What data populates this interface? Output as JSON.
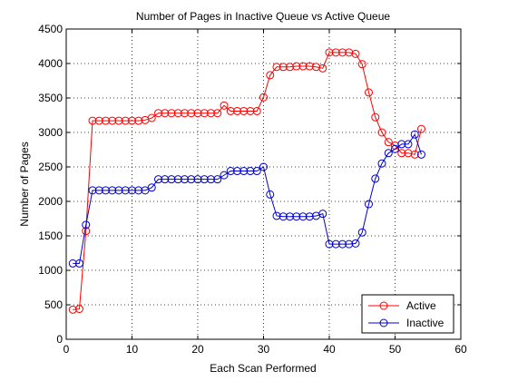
{
  "chart_data": {
    "type": "line",
    "title": "Number of Pages in Inactive Queue vs Active Queue",
    "xlabel": "Each Scan Performed",
    "ylabel": "Number of Pages",
    "xlim": [
      0,
      60
    ],
    "ylim": [
      0,
      4500
    ],
    "xticks": [
      0,
      10,
      20,
      30,
      40,
      50,
      60
    ],
    "yticks": [
      0,
      500,
      1000,
      1500,
      2000,
      2500,
      3000,
      3500,
      4000,
      4500
    ],
    "grid": true,
    "legend_position": "bottom-right",
    "x": [
      1,
      2,
      3,
      4,
      5,
      6,
      7,
      8,
      9,
      10,
      11,
      12,
      13,
      14,
      15,
      16,
      17,
      18,
      19,
      20,
      21,
      22,
      23,
      24,
      25,
      26,
      27,
      28,
      29,
      30,
      31,
      32,
      33,
      34,
      35,
      36,
      37,
      38,
      39,
      40,
      41,
      42,
      43,
      44,
      45,
      46,
      47,
      48,
      49,
      50,
      51,
      52,
      53,
      54
    ],
    "series": [
      {
        "name": "Active",
        "color": "#ff0000",
        "marker": "circle",
        "values": [
          430,
          440,
          1570,
          3170,
          3170,
          3170,
          3170,
          3170,
          3170,
          3170,
          3170,
          3180,
          3210,
          3280,
          3280,
          3280,
          3280,
          3280,
          3280,
          3280,
          3280,
          3280,
          3280,
          3390,
          3310,
          3310,
          3310,
          3310,
          3310,
          3510,
          3830,
          3950,
          3950,
          3950,
          3960,
          3960,
          3960,
          3950,
          3930,
          4160,
          4160,
          4160,
          4160,
          4140,
          3990,
          3580,
          3220,
          3000,
          2860,
          2810,
          2700,
          2700,
          2680,
          3050
        ]
      },
      {
        "name": "Inactive",
        "color": "#0000cc",
        "marker": "circle",
        "values": [
          1100,
          1100,
          1660,
          2160,
          2160,
          2160,
          2160,
          2160,
          2160,
          2160,
          2160,
          2160,
          2200,
          2320,
          2320,
          2320,
          2320,
          2320,
          2320,
          2320,
          2320,
          2320,
          2320,
          2380,
          2440,
          2440,
          2440,
          2440,
          2440,
          2500,
          2100,
          1790,
          1780,
          1780,
          1780,
          1780,
          1780,
          1790,
          1820,
          1380,
          1380,
          1380,
          1380,
          1390,
          1550,
          1960,
          2330,
          2550,
          2700,
          2760,
          2830,
          2830,
          2970,
          2680
        ]
      }
    ]
  }
}
